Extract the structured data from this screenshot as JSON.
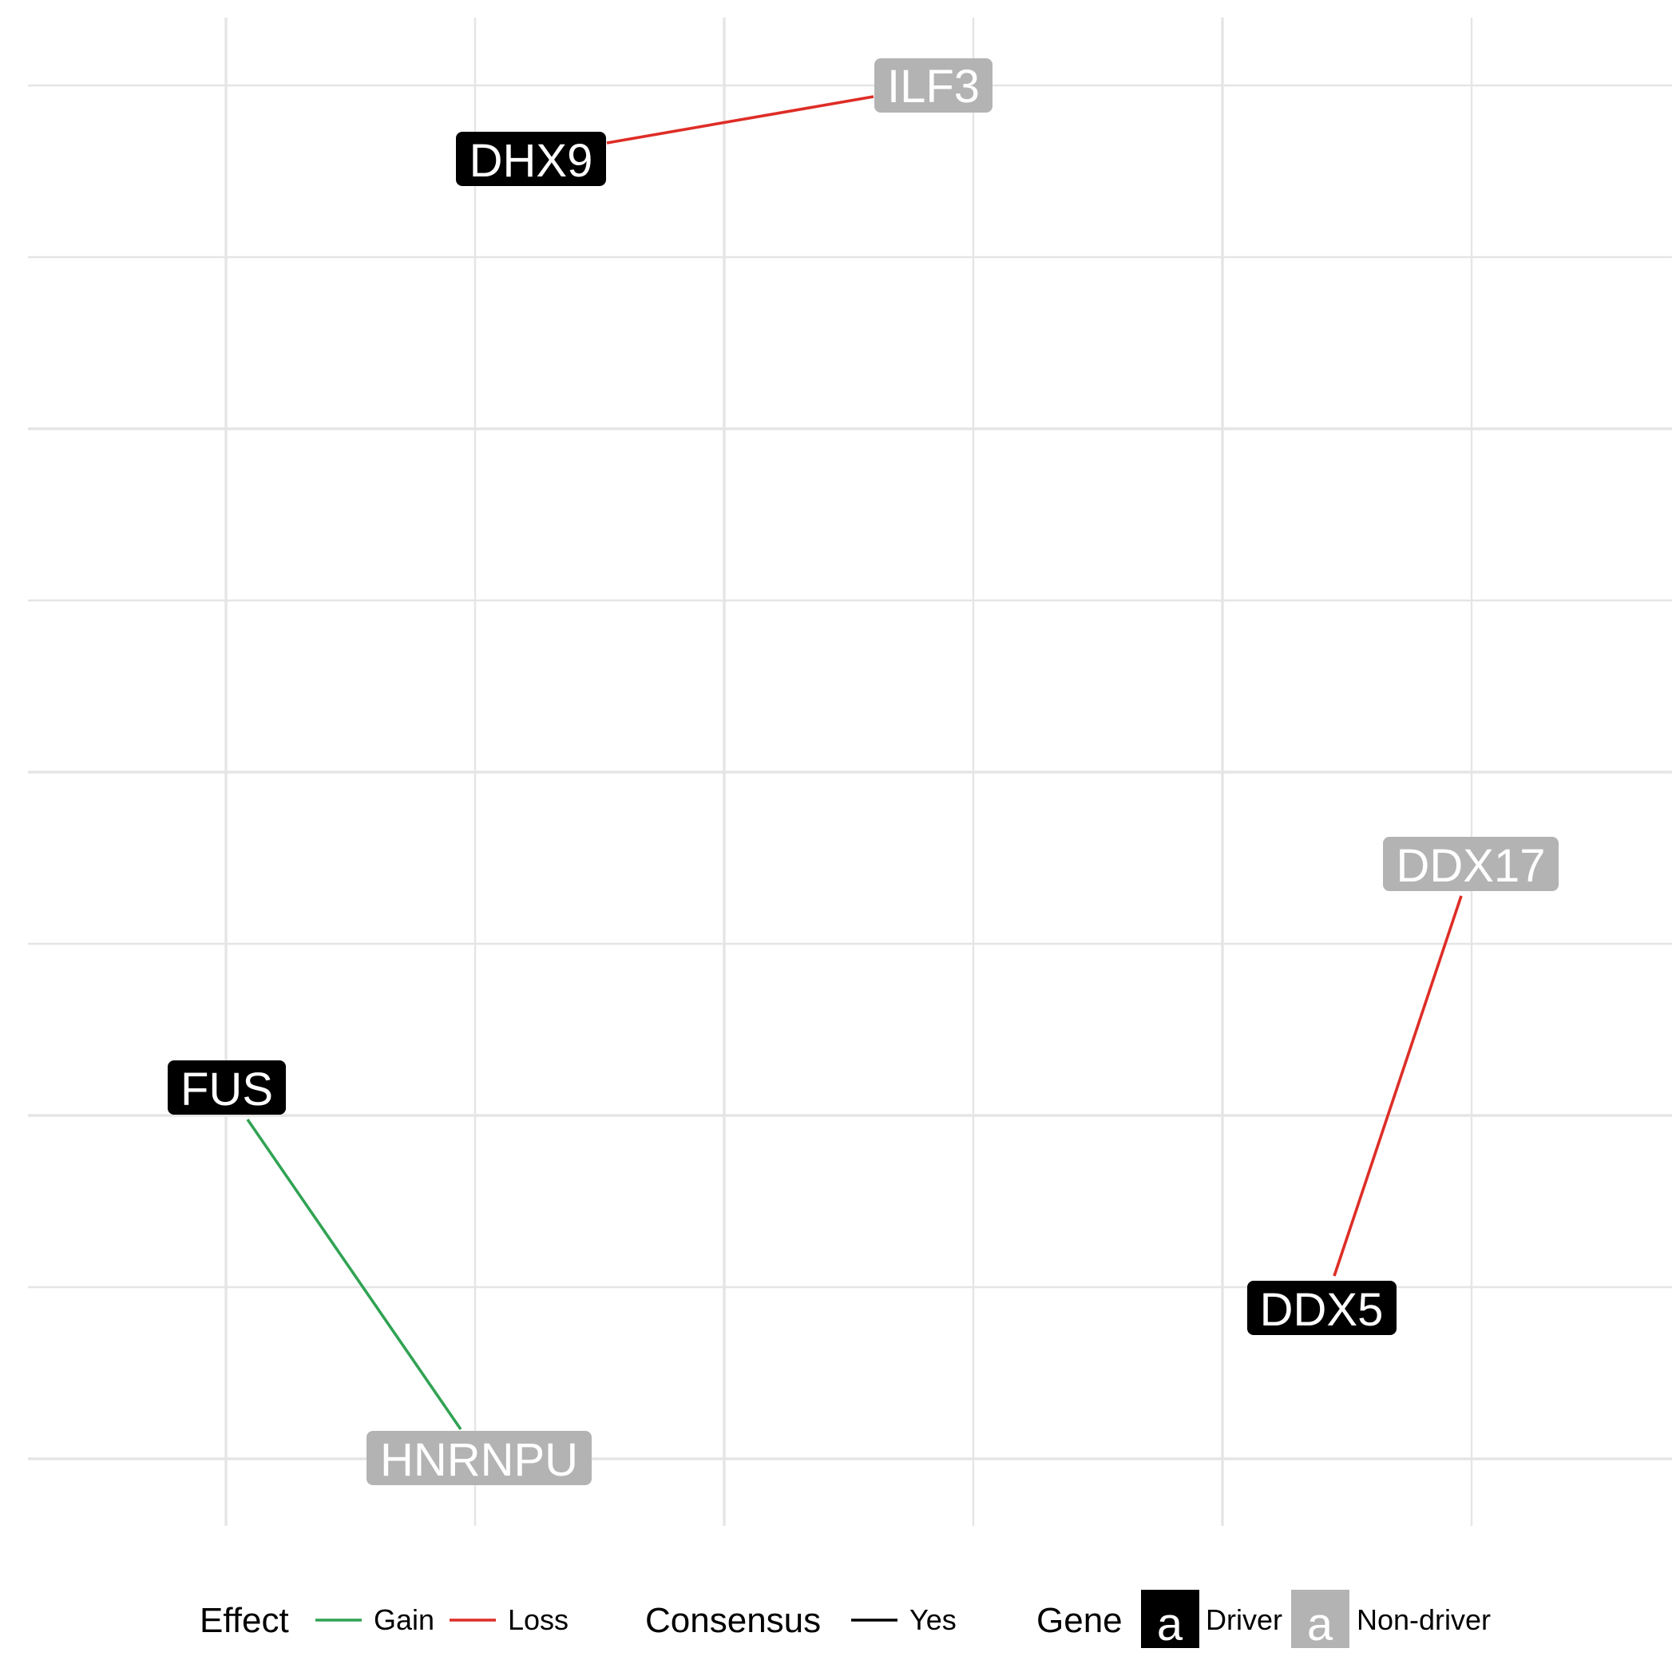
{
  "colors": {
    "grid": "#e5e5e5",
    "gain": "#31a354",
    "loss": "#de2d26",
    "consensus_yes": "#000000",
    "driver": "#000000",
    "non_driver": "#b3b3b3",
    "node_text": "#ffffff"
  },
  "nodes": [
    {
      "id": "ILF3",
      "label": "ILF3",
      "type": "non-driver"
    },
    {
      "id": "DHX9",
      "label": "DHX9",
      "type": "driver"
    },
    {
      "id": "DDX17",
      "label": "DDX17",
      "type": "non-driver"
    },
    {
      "id": "FUS",
      "label": "FUS",
      "type": "driver"
    },
    {
      "id": "DDX5",
      "label": "DDX5",
      "type": "driver"
    },
    {
      "id": "HNRNPU",
      "label": "HNRNPU",
      "type": "non-driver"
    }
  ],
  "edges": [
    {
      "source": "DHX9",
      "target": "ILF3",
      "effect": "Loss",
      "consensus": "Yes"
    },
    {
      "source": "DDX5",
      "target": "DDX17",
      "effect": "Loss",
      "consensus": "Yes"
    },
    {
      "source": "FUS",
      "target": "HNRNPU",
      "effect": "Gain",
      "consensus": "Yes"
    }
  ],
  "legend": {
    "effect": {
      "title": "Effect",
      "items": [
        {
          "label": "Gain",
          "color_key": "gain"
        },
        {
          "label": "Loss",
          "color_key": "loss"
        }
      ]
    },
    "consensus": {
      "title": "Consensus",
      "items": [
        {
          "label": "Yes",
          "color_key": "consensus_yes"
        }
      ]
    },
    "gene": {
      "title": "Gene",
      "key_glyph": "a",
      "items": [
        {
          "label": "Driver",
          "color_key": "driver"
        },
        {
          "label": "Non-driver",
          "color_key": "non_driver"
        }
      ]
    }
  }
}
